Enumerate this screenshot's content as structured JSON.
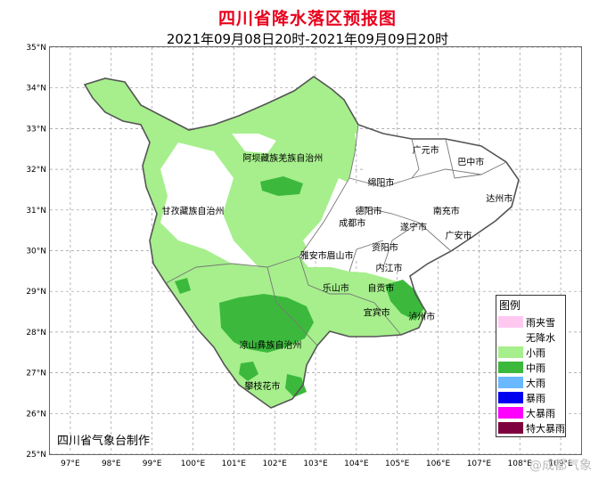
{
  "title": "四川省降水落区预报图",
  "subtitle": "2021年09月08日20时-2021年09月09日20时",
  "agency": "四川省气象台制作",
  "watermark": "@成都气象",
  "colors": {
    "title": "#e8001c",
    "grid": "#9a9a9a",
    "boundary": "#555555"
  },
  "axes": {
    "lat_labels": [
      "35°N",
      "34°N",
      "33°N",
      "32°N",
      "31°N",
      "30°N",
      "29°N",
      "28°N",
      "27°N",
      "26°N",
      "25°N"
    ],
    "lon_labels": [
      "97°E",
      "98°E",
      "99°E",
      "100°E",
      "101°E",
      "102°E",
      "103°E",
      "104°E",
      "105°E",
      "106°E",
      "107°E",
      "108°E",
      "109°E"
    ],
    "lat_range": [
      25,
      35
    ],
    "lon_range": [
      96.5,
      109.5
    ]
  },
  "legend": {
    "title": "图例",
    "items": [
      {
        "label": "雨夹雪",
        "color": "#ffc8f0"
      },
      {
        "label": "无降水",
        "color": "#ffffff"
      },
      {
        "label": "小雨",
        "color": "#a6ef8c"
      },
      {
        "label": "中雨",
        "color": "#3cb93c"
      },
      {
        "label": "大雨",
        "color": "#6ab8ff"
      },
      {
        "label": "暴雨",
        "color": "#0000f0"
      },
      {
        "label": "大暴雨",
        "color": "#ff00ff"
      },
      {
        "label": "特大暴雨",
        "color": "#7f003f"
      }
    ]
  },
  "places": [
    {
      "name": "阿坝藏族羌族自治州",
      "lon": 102.2,
      "lat": 32.2
    },
    {
      "name": "甘孜藏族自治州",
      "lon": 100.0,
      "lat": 30.9
    },
    {
      "name": "凉山彝族自治州",
      "lon": 101.9,
      "lat": 27.6
    },
    {
      "name": "攀枝花市",
      "lon": 101.7,
      "lat": 26.6
    },
    {
      "name": "雅安市",
      "lon": 102.95,
      "lat": 29.8
    },
    {
      "name": "眉山市",
      "lon": 103.6,
      "lat": 29.8
    },
    {
      "name": "成都市",
      "lon": 103.9,
      "lat": 30.6
    },
    {
      "name": "德阳市",
      "lon": 104.3,
      "lat": 30.9
    },
    {
      "name": "绵阳市",
      "lon": 104.6,
      "lat": 31.6
    },
    {
      "name": "广元市",
      "lon": 105.7,
      "lat": 32.4
    },
    {
      "name": "巴中市",
      "lon": 106.8,
      "lat": 32.1
    },
    {
      "name": "达州市",
      "lon": 107.5,
      "lat": 31.2
    },
    {
      "name": "南充市",
      "lon": 106.2,
      "lat": 30.9
    },
    {
      "name": "遂宁市",
      "lon": 105.4,
      "lat": 30.5
    },
    {
      "name": "广安市",
      "lon": 106.5,
      "lat": 30.3
    },
    {
      "name": "资阳市",
      "lon": 104.7,
      "lat": 30.0
    },
    {
      "name": "内江市",
      "lon": 104.8,
      "lat": 29.5
    },
    {
      "name": "乐山市",
      "lon": 103.5,
      "lat": 29.0
    },
    {
      "name": "自贡市",
      "lon": 104.6,
      "lat": 29.0
    },
    {
      "name": "宜宾市",
      "lon": 104.5,
      "lat": 28.4
    },
    {
      "name": "泸州市",
      "lon": 105.6,
      "lat": 28.3
    }
  ]
}
